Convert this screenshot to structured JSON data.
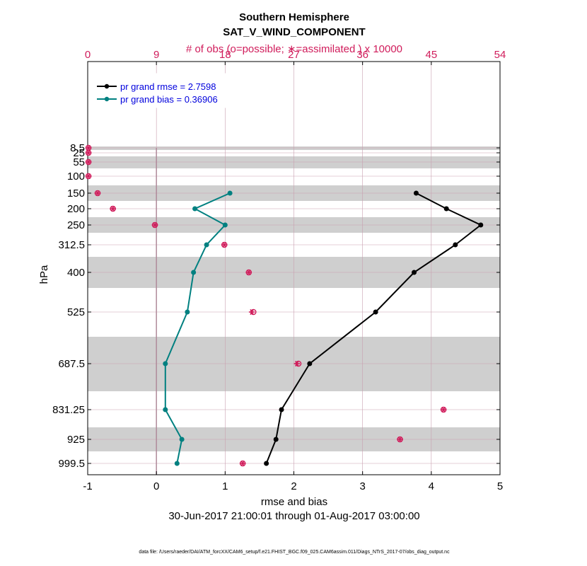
{
  "chart_data": {
    "type": "line",
    "title": "Southern Hemisphere",
    "subtitle": "SAT_V_WIND_COMPONENT",
    "top_axis_label": "# of obs (o=possible; ∗=assimilated ) x 10000",
    "xlabel": "rmse and bias",
    "ylabel": "hPa",
    "date_range": "30-Jun-2017 21:00:01 through 01-Aug-2017 03:00:00",
    "footnote": "data file: /Users/raeder/DAI/ATM_forcXX/CAM6_setup/f.e21.FHIST_BGC.f09_025.CAM6assim.011/Diags_NTrS_2017-07/obs_diag_output.nc",
    "xlim": [
      -1,
      5
    ],
    "xticks": [
      "-1",
      "0",
      "1",
      "2",
      "3",
      "4",
      "5"
    ],
    "top_xlim": [
      0,
      54
    ],
    "top_xticks": [
      "0",
      "9",
      "18",
      "27",
      "36",
      "45",
      "54"
    ],
    "levels": [
      8.5,
      25,
      55,
      100,
      150,
      200,
      250,
      312.5,
      400,
      525,
      687.5,
      831.25,
      925,
      999.5
    ],
    "level_labels": [
      "8.5",
      "25",
      "55",
      "100",
      "150",
      "200",
      "250",
      "312.5",
      "400",
      "525",
      "687.5",
      "831.25",
      "925",
      "999.5"
    ],
    "legend": [
      {
        "label": "pr grand rmse = 2.7598",
        "color": "#000000"
      },
      {
        "label": "pr grand bias = 0.36906",
        "color": "#008080"
      }
    ],
    "series": [
      {
        "name": "rmse",
        "color": "#000000",
        "levels": [
          150,
          200,
          250,
          312.5,
          400,
          525,
          687.5,
          831.25,
          925,
          999.5
        ],
        "values": [
          3.78,
          4.22,
          4.72,
          4.35,
          3.75,
          3.19,
          2.23,
          1.82,
          1.74,
          1.6
        ]
      },
      {
        "name": "bias",
        "color": "#008080",
        "levels": [
          150,
          200,
          250,
          312.5,
          400,
          525,
          687.5,
          831.25,
          925,
          999.5
        ],
        "values": [
          1.07,
          0.56,
          1.0,
          0.73,
          0.54,
          0.45,
          0.13,
          0.13,
          0.37,
          0.3
        ]
      }
    ],
    "obs_counts": {
      "levels": [
        8.5,
        25,
        55,
        100,
        150,
        200,
        250,
        312.5,
        400,
        525,
        687.5,
        831.25,
        925,
        999.5
      ],
      "possible": [
        0.1,
        0.1,
        0.1,
        0.1,
        1.3,
        3.3,
        8.8,
        17.9,
        21.1,
        21.7,
        27.6,
        46.6,
        40.9,
        20.3
      ],
      "assimilated": [
        0.1,
        0.1,
        0.1,
        0.1,
        1.3,
        3.3,
        8.8,
        17.9,
        21.1,
        21.5,
        27.4,
        46.6,
        40.9,
        20.3
      ],
      "color": "#d01c5b"
    },
    "grid": true
  }
}
